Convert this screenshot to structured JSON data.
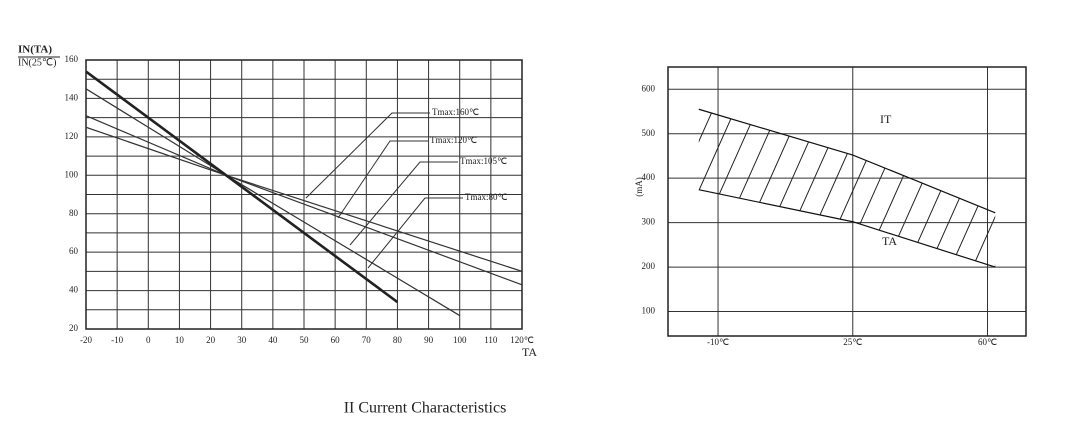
{
  "chart_data": [
    {
      "type": "line",
      "ylabel": [
        "IN(TA)",
        "IN(25℃)"
      ],
      "xlabel": "TA",
      "xlim": [
        -20,
        120
      ],
      "ylim": [
        20,
        160
      ],
      "xticks": [
        -20,
        -10,
        0,
        10,
        20,
        30,
        40,
        50,
        60,
        70,
        80,
        90,
        100,
        110,
        {
          "value": 120,
          "label": "120℃"
        }
      ],
      "yticks": [
        20,
        40,
        60,
        80,
        100,
        120,
        140,
        160
      ],
      "grid": true,
      "series": [
        {
          "name": "Tmax:160℃",
          "color": "#333333",
          "x": [
            -20,
            25,
            120
          ],
          "values": [
            125,
            100,
            50
          ]
        },
        {
          "name": "Tmax:120℃",
          "color": "#333333",
          "x": [
            -20,
            25,
            120
          ],
          "values": [
            131,
            100,
            43
          ]
        },
        {
          "name": "Tmax:105℃",
          "color": "#333333",
          "x": [
            -20,
            25,
            100
          ],
          "values": [
            145,
            100,
            27
          ]
        },
        {
          "name": "Tmax:80℃",
          "color": "#222222",
          "x": [
            -20,
            25,
            80
          ],
          "values": [
            154,
            100,
            34
          ]
        }
      ]
    },
    {
      "type": "band",
      "ylabel": "(mA)",
      "xlim": [
        -23,
        70
      ],
      "ylim": [
        45,
        650
      ],
      "xticks": [
        {
          "value": -10,
          "label": "-10℃"
        },
        {
          "value": 25,
          "label": "25℃"
        },
        {
          "value": 60,
          "label": "60℃"
        }
      ],
      "yticks": [
        100,
        200,
        300,
        400,
        500,
        600
      ],
      "grid": true,
      "series": [
        {
          "name": "IT",
          "color": "#111111",
          "x": [
            -15,
            25,
            41,
            62
          ],
          "values": [
            555,
            452,
            396,
            322
          ]
        },
        {
          "name": "TA",
          "color": "#111111",
          "x": [
            -15,
            25,
            62
          ],
          "values": [
            374,
            302,
            200
          ]
        }
      ]
    }
  ],
  "caption": "II    Current Characteristics"
}
